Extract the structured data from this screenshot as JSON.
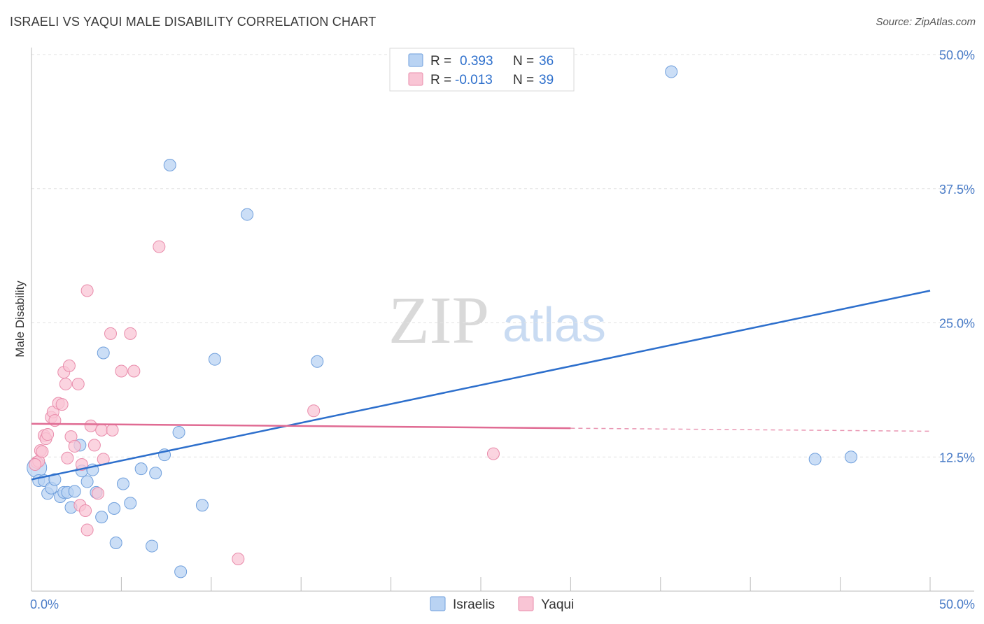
{
  "title": "ISRAELI VS YAQUI MALE DISABILITY CORRELATION CHART",
  "source": "Source: ZipAtlas.com",
  "watermark": {
    "zip": "ZIP",
    "atlas": "atlas"
  },
  "colors": {
    "blue_fill": "#b9d3f3",
    "blue_stroke": "#6f9fdc",
    "blue_line": "#2d6fcc",
    "pink_fill": "#f9c5d5",
    "pink_stroke": "#e98cab",
    "pink_line": "#e06b93",
    "axis_text": "#4a7cc7",
    "grid": "#e2e2e2"
  },
  "legend": {
    "rows": [
      {
        "r_label": "R =",
        "r_value": "0.393",
        "n_label": "N =",
        "n_value": "36"
      },
      {
        "r_label": "R =",
        "r_value": "-0.013",
        "n_label": "N =",
        "n_value": "39"
      }
    ]
  },
  "chart_data": {
    "type": "scatter",
    "title": "ISRAELI VS YAQUI MALE DISABILITY CORRELATION CHART",
    "xlabel": "",
    "ylabel": "Male Disability",
    "xlim": [
      0,
      50
    ],
    "ylim": [
      0,
      50
    ],
    "x_tick_labels": [
      "0.0%",
      "50.0%"
    ],
    "y_ticks": [
      12.5,
      25.0,
      37.5,
      50.0
    ],
    "y_tick_labels": [
      "12.5%",
      "25.0%",
      "37.5%",
      "50.0%"
    ],
    "series": [
      {
        "name": "Israelis",
        "color": "blue",
        "trend": {
          "x": [
            0,
            50
          ],
          "y": [
            10.4,
            28.0
          ],
          "dashed_from": null
        },
        "points": [
          {
            "x": 0.3,
            "y": 11.5,
            "big": true
          },
          {
            "x": 0.4,
            "y": 10.3
          },
          {
            "x": 0.7,
            "y": 10.3
          },
          {
            "x": 0.9,
            "y": 9.1
          },
          {
            "x": 1.1,
            "y": 9.6
          },
          {
            "x": 1.3,
            "y": 10.4
          },
          {
            "x": 1.6,
            "y": 8.8
          },
          {
            "x": 1.8,
            "y": 9.2
          },
          {
            "x": 2.0,
            "y": 9.2
          },
          {
            "x": 2.2,
            "y": 7.8
          },
          {
            "x": 2.4,
            "y": 9.3
          },
          {
            "x": 2.7,
            "y": 13.6
          },
          {
            "x": 2.8,
            "y": 11.2
          },
          {
            "x": 3.1,
            "y": 10.2
          },
          {
            "x": 3.4,
            "y": 11.3
          },
          {
            "x": 3.6,
            "y": 9.2
          },
          {
            "x": 3.9,
            "y": 6.9
          },
          {
            "x": 4.0,
            "y": 22.2
          },
          {
            "x": 4.6,
            "y": 7.7
          },
          {
            "x": 4.7,
            "y": 4.5
          },
          {
            "x": 5.1,
            "y": 10.0
          },
          {
            "x": 5.5,
            "y": 8.2
          },
          {
            "x": 6.1,
            "y": 11.4
          },
          {
            "x": 6.7,
            "y": 4.2
          },
          {
            "x": 6.9,
            "y": 11.0
          },
          {
            "x": 7.4,
            "y": 12.7
          },
          {
            "x": 7.7,
            "y": 39.7
          },
          {
            "x": 8.2,
            "y": 14.8
          },
          {
            "x": 8.3,
            "y": 1.8
          },
          {
            "x": 9.5,
            "y": 8.0
          },
          {
            "x": 10.2,
            "y": 21.6
          },
          {
            "x": 12.0,
            "y": 35.1
          },
          {
            "x": 15.9,
            "y": 21.4
          },
          {
            "x": 35.6,
            "y": 48.4
          },
          {
            "x": 43.6,
            "y": 12.3
          },
          {
            "x": 45.6,
            "y": 12.5
          }
        ]
      },
      {
        "name": "Yaqui",
        "color": "pink",
        "trend": {
          "x": [
            0,
            50
          ],
          "y": [
            15.6,
            14.9
          ],
          "dashed_from": 30
        },
        "points": [
          {
            "x": 0.3,
            "y": 12.0
          },
          {
            "x": 0.4,
            "y": 12.1
          },
          {
            "x": 0.5,
            "y": 13.1
          },
          {
            "x": 0.6,
            "y": 13.0
          },
          {
            "x": 0.7,
            "y": 14.5
          },
          {
            "x": 0.8,
            "y": 14.2
          },
          {
            "x": 0.9,
            "y": 14.6
          },
          {
            "x": 1.1,
            "y": 16.2
          },
          {
            "x": 1.2,
            "y": 16.7
          },
          {
            "x": 1.3,
            "y": 15.9
          },
          {
            "x": 1.5,
            "y": 17.5
          },
          {
            "x": 1.7,
            "y": 17.4
          },
          {
            "x": 1.8,
            "y": 20.4
          },
          {
            "x": 1.9,
            "y": 19.3
          },
          {
            "x": 2.0,
            "y": 12.4
          },
          {
            "x": 2.1,
            "y": 21.0
          },
          {
            "x": 2.2,
            "y": 14.4
          },
          {
            "x": 2.4,
            "y": 13.5
          },
          {
            "x": 2.6,
            "y": 19.3
          },
          {
            "x": 2.7,
            "y": 8.0
          },
          {
            "x": 2.8,
            "y": 11.8
          },
          {
            "x": 3.0,
            "y": 7.5
          },
          {
            "x": 3.1,
            "y": 5.7
          },
          {
            "x": 3.1,
            "y": 28.0
          },
          {
            "x": 3.3,
            "y": 15.4
          },
          {
            "x": 3.5,
            "y": 13.6
          },
          {
            "x": 3.7,
            "y": 9.1
          },
          {
            "x": 3.9,
            "y": 15.0
          },
          {
            "x": 4.0,
            "y": 12.3
          },
          {
            "x": 4.4,
            "y": 24.0
          },
          {
            "x": 4.5,
            "y": 15.0
          },
          {
            "x": 5.0,
            "y": 20.5
          },
          {
            "x": 5.5,
            "y": 24.0
          },
          {
            "x": 5.7,
            "y": 20.5
          },
          {
            "x": 7.1,
            "y": 32.1
          },
          {
            "x": 11.5,
            "y": 3.0
          },
          {
            "x": 15.7,
            "y": 16.8
          },
          {
            "x": 25.7,
            "y": 12.8
          },
          {
            "x": 0.2,
            "y": 11.8
          }
        ]
      }
    ]
  }
}
